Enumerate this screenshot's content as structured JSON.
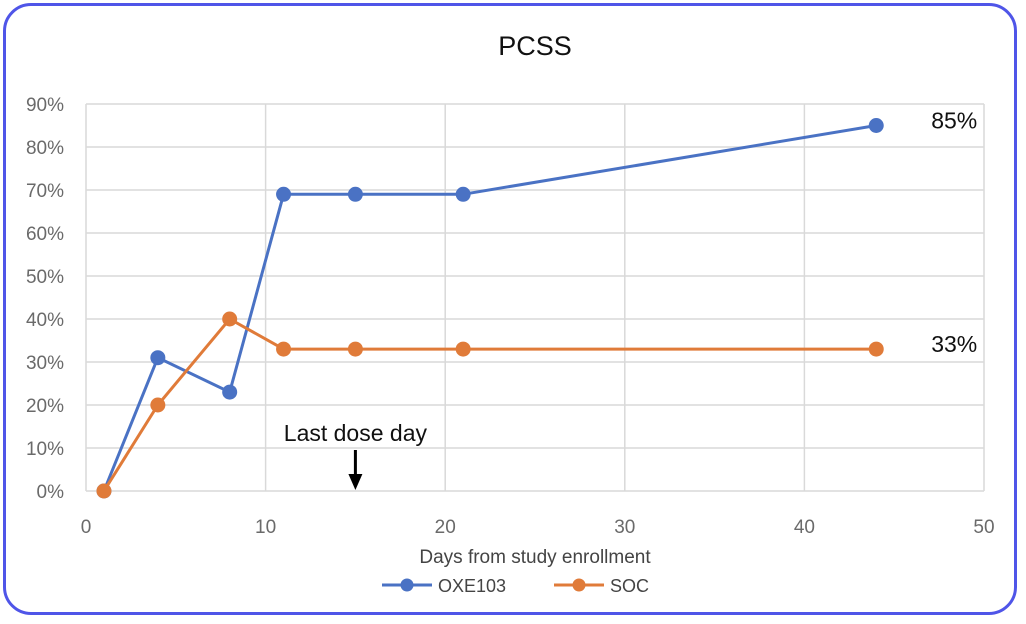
{
  "chart_data": {
    "type": "line",
    "title": "PCSS",
    "xlabel": "Days from study enrollment",
    "ylabel": "",
    "xlim": [
      0,
      50
    ],
    "ylim": [
      0,
      90
    ],
    "x_ticks": [
      0,
      10,
      20,
      30,
      40,
      50
    ],
    "y_ticks": [
      0,
      10,
      20,
      30,
      40,
      50,
      60,
      70,
      80,
      90
    ],
    "y_tick_labels": [
      "0%",
      "10%",
      "20%",
      "30%",
      "40%",
      "50%",
      "60%",
      "70%",
      "80%",
      "90%"
    ],
    "grid": true,
    "legend_position": "bottom",
    "series": [
      {
        "name": "OXE103",
        "color": "#4a72c4",
        "x": [
          1,
          4,
          8,
          11,
          15,
          21,
          44
        ],
        "y": [
          0,
          31,
          23,
          69,
          69,
          69,
          85
        ],
        "end_label": "85%"
      },
      {
        "name": "SOC",
        "color": "#e07b39",
        "x": [
          1,
          4,
          8,
          11,
          15,
          21,
          44
        ],
        "y": [
          0,
          20,
          40,
          33,
          33,
          33,
          33
        ],
        "end_label": "33%"
      }
    ],
    "annotations": [
      {
        "text": "Last dose day",
        "x": 15,
        "arrow": true
      }
    ]
  }
}
